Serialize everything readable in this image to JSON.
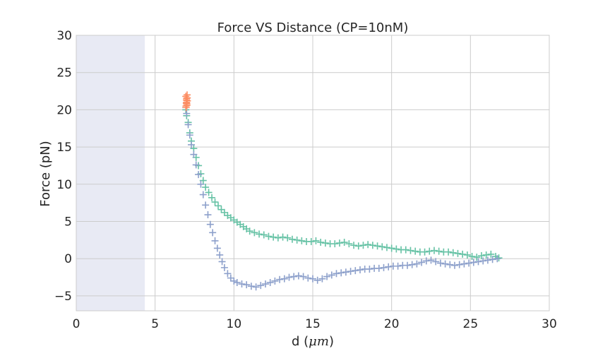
{
  "chart_data": {
    "type": "scatter",
    "title": "Force VS Distance (CP=10nM)",
    "xlabel": "d (",
    "xlabel_unit": "μm",
    "xlabel_close": ")",
    "ylabel": "Force (pN)",
    "xlim": [
      0,
      30
    ],
    "ylim": [
      -7,
      30
    ],
    "xticks": [
      "0",
      "5",
      "10",
      "15",
      "20",
      "25",
      "30"
    ],
    "yticks": [
      "−5",
      "0",
      "5",
      "10",
      "15",
      "20",
      "25",
      "30"
    ],
    "grid": true,
    "shaded_region": {
      "x_from": 0,
      "x_to": 4.35,
      "color": "#e8eaf4"
    },
    "marker": "+",
    "series": [
      {
        "color": "#66c2a5",
        "x": [
          6.95,
          7.0,
          7.1,
          7.2,
          7.3,
          7.45,
          7.6,
          7.75,
          7.9,
          8.05,
          8.2,
          8.4,
          8.6,
          8.8,
          9.0,
          9.2,
          9.4,
          9.6,
          9.8,
          10.0,
          10.2,
          10.4,
          10.6,
          10.8,
          11.0,
          11.3,
          11.6,
          11.9,
          12.2,
          12.5,
          12.8,
          13.1,
          13.4,
          13.7,
          14.0,
          14.3,
          14.6,
          14.9,
          15.2,
          15.5,
          15.8,
          16.1,
          16.4,
          16.7,
          17.0,
          17.3,
          17.6,
          17.9,
          18.2,
          18.5,
          18.8,
          19.1,
          19.4,
          19.7,
          20.0,
          20.3,
          20.6,
          20.9,
          21.2,
          21.5,
          21.8,
          22.1,
          22.4,
          22.7,
          23.0,
          23.3,
          23.6,
          23.9,
          24.2,
          24.5,
          24.8,
          25.1,
          25.4,
          25.7,
          26.0,
          26.3,
          26.6,
          26.8
        ],
        "y": [
          20.0,
          19.2,
          18.3,
          16.9,
          15.8,
          14.8,
          13.6,
          12.5,
          11.4,
          10.5,
          9.6,
          8.9,
          8.2,
          7.6,
          7.1,
          6.6,
          6.2,
          5.8,
          5.5,
          5.2,
          4.9,
          4.6,
          4.3,
          4.0,
          3.7,
          3.5,
          3.3,
          3.2,
          3.0,
          2.9,
          2.8,
          2.9,
          2.8,
          2.6,
          2.5,
          2.4,
          2.3,
          2.3,
          2.4,
          2.2,
          2.1,
          2.0,
          2.0,
          2.1,
          2.2,
          2.0,
          1.8,
          1.7,
          1.8,
          1.9,
          1.8,
          1.7,
          1.6,
          1.5,
          1.4,
          1.3,
          1.2,
          1.2,
          1.1,
          1.0,
          0.9,
          0.9,
          1.0,
          1.1,
          1.0,
          0.9,
          0.9,
          0.8,
          0.7,
          0.6,
          0.5,
          0.3,
          0.2,
          0.4,
          0.5,
          0.6,
          0.3,
          0.1
        ]
      },
      {
        "color": "#8da0cb",
        "x": [
          6.95,
          7.0,
          7.1,
          7.2,
          7.3,
          7.45,
          7.6,
          7.75,
          7.9,
          8.05,
          8.2,
          8.35,
          8.5,
          8.65,
          8.8,
          8.95,
          9.1,
          9.25,
          9.4,
          9.6,
          9.8,
          10.0,
          10.2,
          10.5,
          10.8,
          11.1,
          11.4,
          11.7,
          12.0,
          12.3,
          12.6,
          12.9,
          13.2,
          13.5,
          13.8,
          14.1,
          14.4,
          14.7,
          15.0,
          15.3,
          15.6,
          15.9,
          16.2,
          16.5,
          16.8,
          17.1,
          17.4,
          17.7,
          18.0,
          18.3,
          18.6,
          18.9,
          19.2,
          19.5,
          19.8,
          20.1,
          20.4,
          20.7,
          21.0,
          21.3,
          21.6,
          21.9,
          22.2,
          22.5,
          22.8,
          23.1,
          23.4,
          23.7,
          24.0,
          24.3,
          24.6,
          24.9,
          25.2,
          25.5,
          25.8,
          26.1,
          26.4,
          26.7
        ],
        "y": [
          20.3,
          19.5,
          18.0,
          16.6,
          15.3,
          14.0,
          12.6,
          11.3,
          10.0,
          8.6,
          7.2,
          5.9,
          4.6,
          3.5,
          2.4,
          1.4,
          0.5,
          -0.4,
          -1.2,
          -2.0,
          -2.6,
          -3.0,
          -3.2,
          -3.4,
          -3.5,
          -3.7,
          -3.8,
          -3.6,
          -3.4,
          -3.2,
          -3.0,
          -2.8,
          -2.7,
          -2.5,
          -2.4,
          -2.3,
          -2.4,
          -2.6,
          -2.7,
          -2.9,
          -2.7,
          -2.4,
          -2.2,
          -2.0,
          -1.9,
          -1.8,
          -1.7,
          -1.6,
          -1.5,
          -1.4,
          -1.4,
          -1.3,
          -1.3,
          -1.2,
          -1.1,
          -1.0,
          -1.0,
          -0.9,
          -0.9,
          -0.8,
          -0.7,
          -0.5,
          -0.3,
          -0.2,
          -0.4,
          -0.6,
          -0.7,
          -0.8,
          -0.9,
          -0.8,
          -0.7,
          -0.6,
          -0.5,
          -0.4,
          -0.3,
          -0.2,
          -0.1,
          0.0
        ]
      },
      {
        "color": "#fc8d62",
        "x": [
          6.95,
          7.0,
          7.05,
          6.98,
          7.02,
          6.97,
          7.03,
          7.0,
          6.96,
          7.04,
          7.01,
          6.99
        ],
        "y": [
          21.8,
          21.5,
          21.2,
          20.9,
          20.6,
          20.3,
          22.0,
          21.0,
          20.5,
          21.6,
          20.8,
          21.3
        ]
      }
    ]
  }
}
